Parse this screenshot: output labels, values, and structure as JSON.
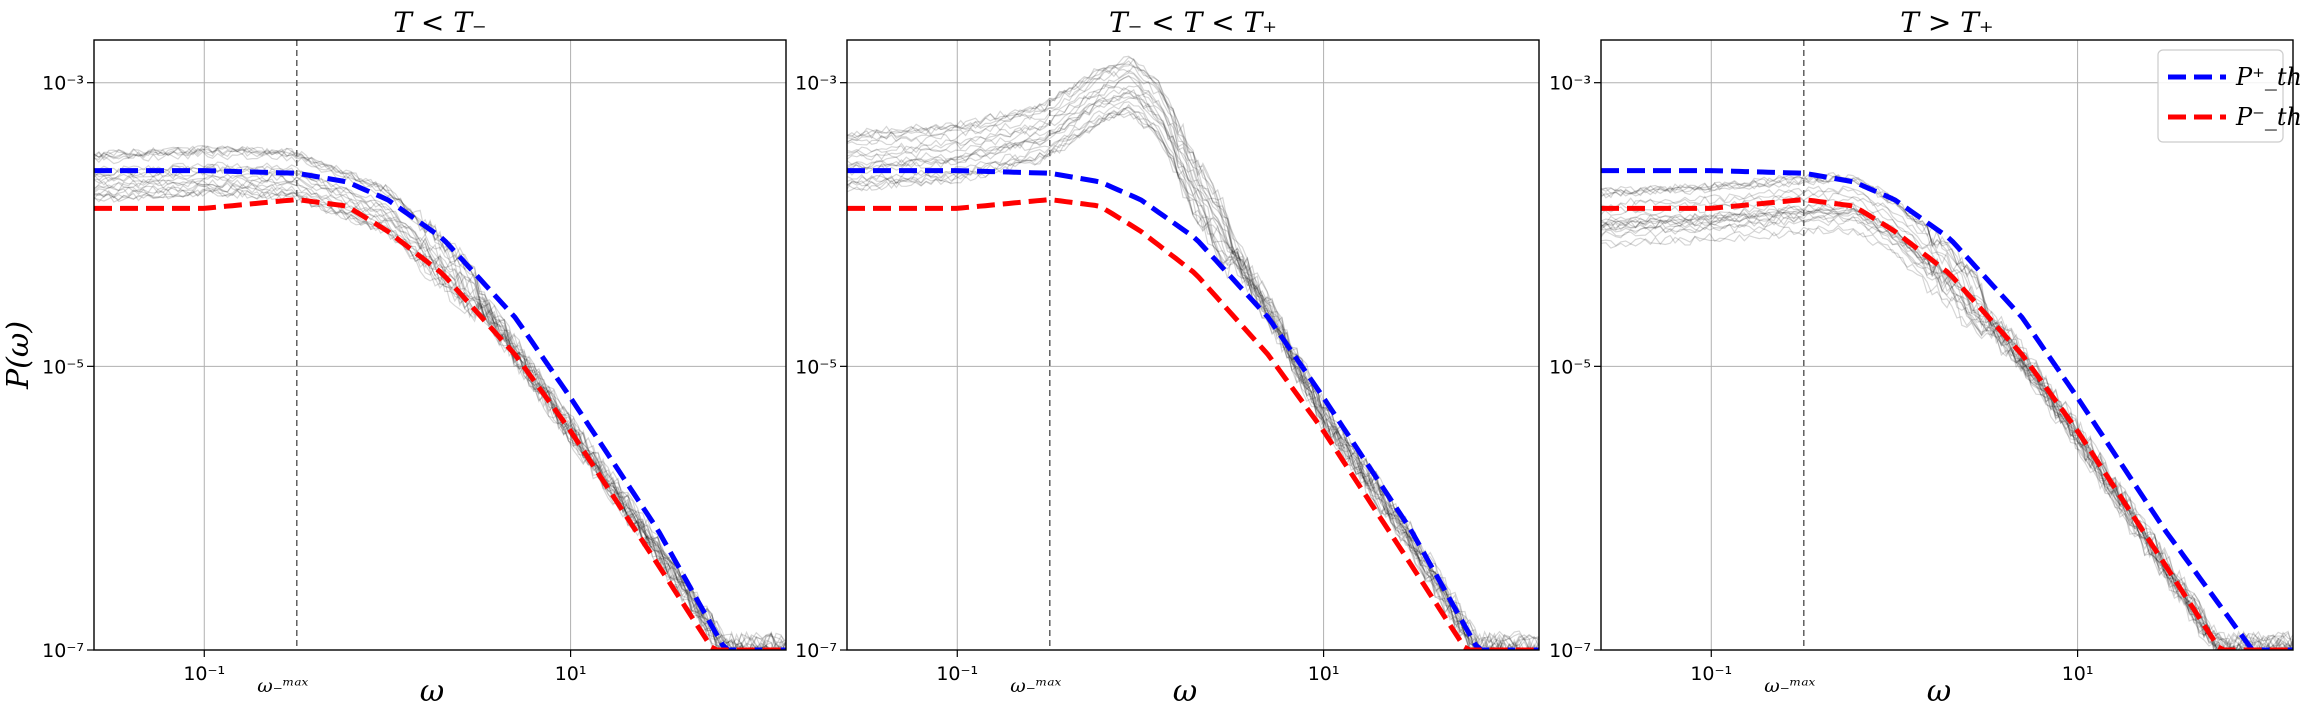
{
  "figure": {
    "ylabel": "P(ω)",
    "xlabel": "ω"
  },
  "chart_data": [
    {
      "type": "line",
      "title": "T < T₋",
      "xlabel": "ω",
      "ylabel": "P(ω)",
      "xscale": "log",
      "yscale": "log",
      "xlim": [
        0.025,
        150
      ],
      "ylim": [
        1e-07,
        0.002
      ],
      "xticks": [
        {
          "value": 0.1,
          "label": "10⁻¹"
        },
        {
          "value": 10,
          "label": "10¹"
        }
      ],
      "yticks": [
        {
          "value": 1e-07,
          "label": "10⁻⁷"
        },
        {
          "value": 1e-05,
          "label": "10⁻⁵"
        },
        {
          "value": 0.001,
          "label": "10⁻³"
        }
      ],
      "grid": true,
      "vline": {
        "x": 0.32,
        "label": "ω₋ᵐᵃˣ"
      },
      "sim_profile": [
        [
          0.025,
          0.00021
        ],
        [
          0.1,
          0.00023
        ],
        [
          0.3,
          0.00022
        ],
        [
          1,
          0.00012
        ],
        [
          3,
          3.2e-05
        ],
        [
          10,
          3.5e-06
        ],
        [
          30,
          5e-07
        ],
        [
          70,
          1e-07
        ]
      ],
      "sim_spread": 0.18,
      "sim_count": 24,
      "series": [
        {
          "name": "P⁺_th",
          "color": "#0000ff",
          "values": [
            [
              0.025,
              0.00024
            ],
            [
              0.1,
              0.00024
            ],
            [
              0.32,
              0.00023
            ],
            [
              0.6,
              0.0002
            ],
            [
              1,
              0.00015
            ],
            [
              2,
              8e-05
            ],
            [
              5,
              2.2e-05
            ],
            [
              10,
              6e-06
            ],
            [
              30,
              7e-07
            ],
            [
              70,
              1e-07
            ]
          ]
        },
        {
          "name": "P⁻_th",
          "color": "#ff0000",
          "values": [
            [
              0.025,
              0.00013
            ],
            [
              0.1,
              0.00013
            ],
            [
              0.32,
              0.00015
            ],
            [
              0.6,
              0.000135
            ],
            [
              1,
              9e-05
            ],
            [
              2,
              4.5e-05
            ],
            [
              5,
              1.2e-05
            ],
            [
              10,
              3.5e-06
            ],
            [
              30,
              4e-07
            ],
            [
              60,
              1e-07
            ]
          ]
        }
      ]
    },
    {
      "type": "line",
      "title": "T₋ < T < T₊",
      "xlabel": "ω",
      "xscale": "log",
      "yscale": "log",
      "xlim": [
        0.025,
        150
      ],
      "ylim": [
        1e-07,
        0.002
      ],
      "xticks": [
        {
          "value": 0.1,
          "label": "10⁻¹"
        },
        {
          "value": 10,
          "label": "10¹"
        }
      ],
      "yticks": [
        {
          "value": 1e-07,
          "label": "10⁻⁷"
        },
        {
          "value": 1e-05,
          "label": "10⁻⁵"
        },
        {
          "value": 0.001,
          "label": "10⁻³"
        }
      ],
      "grid": true,
      "vline": {
        "x": 0.32,
        "label": "ω₋ᵐᵃˣ"
      },
      "sim_profile": [
        [
          0.025,
          0.00028
        ],
        [
          0.1,
          0.00032
        ],
        [
          0.3,
          0.00045
        ],
        [
          0.6,
          0.0008
        ],
        [
          0.9,
          0.00095
        ],
        [
          1.3,
          0.0006
        ],
        [
          2,
          0.00018
        ],
        [
          5,
          2.5e-05
        ],
        [
          10,
          4.5e-06
        ],
        [
          30,
          6e-07
        ],
        [
          70,
          1e-07
        ]
      ],
      "sim_spread": 0.2,
      "sim_count": 24,
      "series": [
        {
          "name": "P⁺_th",
          "color": "#0000ff",
          "values": [
            [
              0.025,
              0.00024
            ],
            [
              0.1,
              0.00024
            ],
            [
              0.32,
              0.00023
            ],
            [
              0.6,
              0.0002
            ],
            [
              1,
              0.00015
            ],
            [
              2,
              8e-05
            ],
            [
              5,
              2.2e-05
            ],
            [
              10,
              6e-06
            ],
            [
              30,
              7e-07
            ],
            [
              70,
              1e-07
            ]
          ]
        },
        {
          "name": "P⁻_th",
          "color": "#ff0000",
          "values": [
            [
              0.025,
              0.00013
            ],
            [
              0.1,
              0.00013
            ],
            [
              0.32,
              0.00015
            ],
            [
              0.6,
              0.000135
            ],
            [
              1,
              9e-05
            ],
            [
              2,
              4.5e-05
            ],
            [
              5,
              1.2e-05
            ],
            [
              10,
              3.5e-06
            ],
            [
              30,
              4e-07
            ],
            [
              60,
              1e-07
            ]
          ]
        }
      ]
    },
    {
      "type": "line",
      "title": "T > T₊",
      "xlabel": "ω",
      "xscale": "log",
      "yscale": "log",
      "xlim": [
        0.025,
        150
      ],
      "ylim": [
        1e-07,
        0.002
      ],
      "xticks": [
        {
          "value": 0.1,
          "label": "10⁻¹"
        },
        {
          "value": 10,
          "label": "10¹"
        }
      ],
      "yticks": [
        {
          "value": 1e-07,
          "label": "10⁻⁷"
        },
        {
          "value": 1e-05,
          "label": "10⁻⁵"
        },
        {
          "value": 0.001,
          "label": "10⁻³"
        }
      ],
      "grid": true,
      "vline": {
        "x": 0.32,
        "label": "ω₋ᵐᵃˣ"
      },
      "legend": {
        "placement": "top-right"
      },
      "sim_profile": [
        [
          0.025,
          0.00011
        ],
        [
          0.1,
          0.00012
        ],
        [
          0.3,
          0.000135
        ],
        [
          0.6,
          0.00014
        ],
        [
          1,
          9.5e-05
        ],
        [
          2,
          4.3e-05
        ],
        [
          5,
          1.1e-05
        ],
        [
          10,
          3.2e-06
        ],
        [
          30,
          3.8e-07
        ],
        [
          60,
          1e-07
        ]
      ],
      "sim_spread": 0.2,
      "sim_count": 24,
      "series": [
        {
          "name": "P⁺_th",
          "color": "#0000ff",
          "values": [
            [
              0.025,
              0.00024
            ],
            [
              0.1,
              0.00024
            ],
            [
              0.32,
              0.00023
            ],
            [
              0.6,
              0.0002
            ],
            [
              1,
              0.00015
            ],
            [
              2,
              8e-05
            ],
            [
              5,
              2.2e-05
            ],
            [
              10,
              6e-06
            ],
            [
              30,
              7e-07
            ],
            [
              90,
              1e-07
            ]
          ]
        },
        {
          "name": "P⁻_th",
          "color": "#ff0000",
          "values": [
            [
              0.025,
              0.00013
            ],
            [
              0.1,
              0.00013
            ],
            [
              0.32,
              0.00015
            ],
            [
              0.6,
              0.000135
            ],
            [
              1,
              9e-05
            ],
            [
              2,
              4.5e-05
            ],
            [
              5,
              1.2e-05
            ],
            [
              10,
              3.5e-06
            ],
            [
              30,
              4e-07
            ],
            [
              60,
              1e-07
            ]
          ]
        }
      ]
    }
  ]
}
